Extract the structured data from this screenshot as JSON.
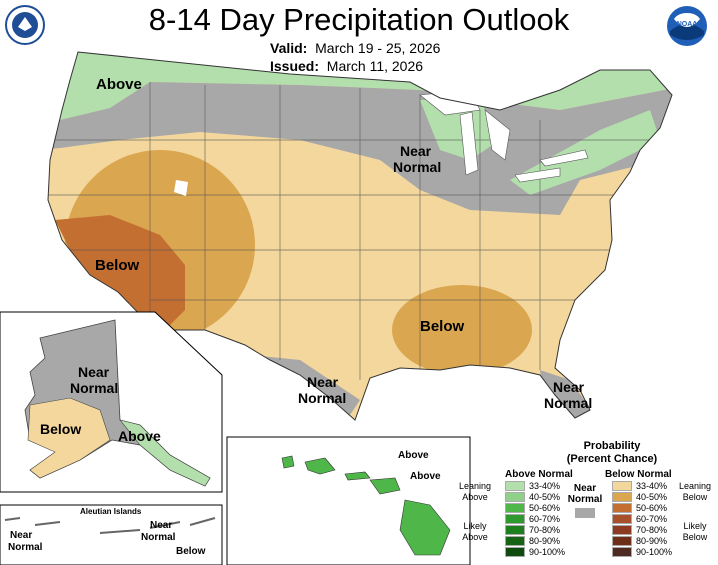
{
  "title": "8-14 Day Precipitation Outlook",
  "valid_label": "Valid:",
  "valid_value": "March 19 - 25, 2026",
  "issued_label": "Issued:",
  "issued_value": "March 11, 2026",
  "logos": {
    "left": "department-of-commerce-seal",
    "right": "noaa-logo",
    "noaa_text": "NOAA"
  },
  "regions": {
    "nw_above": "Above",
    "north_near": [
      "Near",
      "Normal"
    ],
    "sw_below": "Below",
    "se_below": "Below",
    "tx_near": [
      "Near",
      "Normal"
    ],
    "fl_near": [
      "Near",
      "Normal"
    ]
  },
  "alaska": {
    "near": [
      "Near",
      "Normal"
    ],
    "below": "Below",
    "above": "Above"
  },
  "aleutian": {
    "title": "Aleutian Islands",
    "near_left": [
      "Near",
      "Normal"
    ],
    "near_right": [
      "Near",
      "Normal"
    ],
    "below": "Below"
  },
  "hawaii": {
    "above1": "Above",
    "above2": "Above"
  },
  "legend": {
    "title1": "Probability",
    "title2": "(Percent Chance)",
    "above_head": "Above Normal",
    "below_head": "Below Normal",
    "near_label": [
      "Near",
      "Normal"
    ],
    "leaning_above": [
      "Leaning",
      "Above"
    ],
    "likely_above": [
      "Likely",
      "Above"
    ],
    "leaning_below": [
      "Leaning",
      "Below"
    ],
    "likely_below": [
      "Likely",
      "Below"
    ],
    "above_rows": [
      {
        "label": "33-40%",
        "color": "#b3dfad"
      },
      {
        "label": "40-50%",
        "color": "#8fd18a"
      },
      {
        "label": "50-60%",
        "color": "#4fb64a"
      },
      {
        "label": "60-70%",
        "color": "#2e9a2e"
      },
      {
        "label": "70-80%",
        "color": "#1f7f1f"
      },
      {
        "label": "80-90%",
        "color": "#166316"
      },
      {
        "label": "90-100%",
        "color": "#0f4a0f"
      }
    ],
    "below_rows": [
      {
        "label": "33-40%",
        "color": "#f4d79c"
      },
      {
        "label": "40-50%",
        "color": "#dba650"
      },
      {
        "label": "50-60%",
        "color": "#c46f32"
      },
      {
        "label": "60-70%",
        "color": "#a8502b"
      },
      {
        "label": "70-80%",
        "color": "#8d3c22"
      },
      {
        "label": "80-90%",
        "color": "#6e2e18"
      },
      {
        "label": "90-100%",
        "color": "#4e2a20"
      }
    ],
    "near_color": "#a8a8a8"
  }
}
